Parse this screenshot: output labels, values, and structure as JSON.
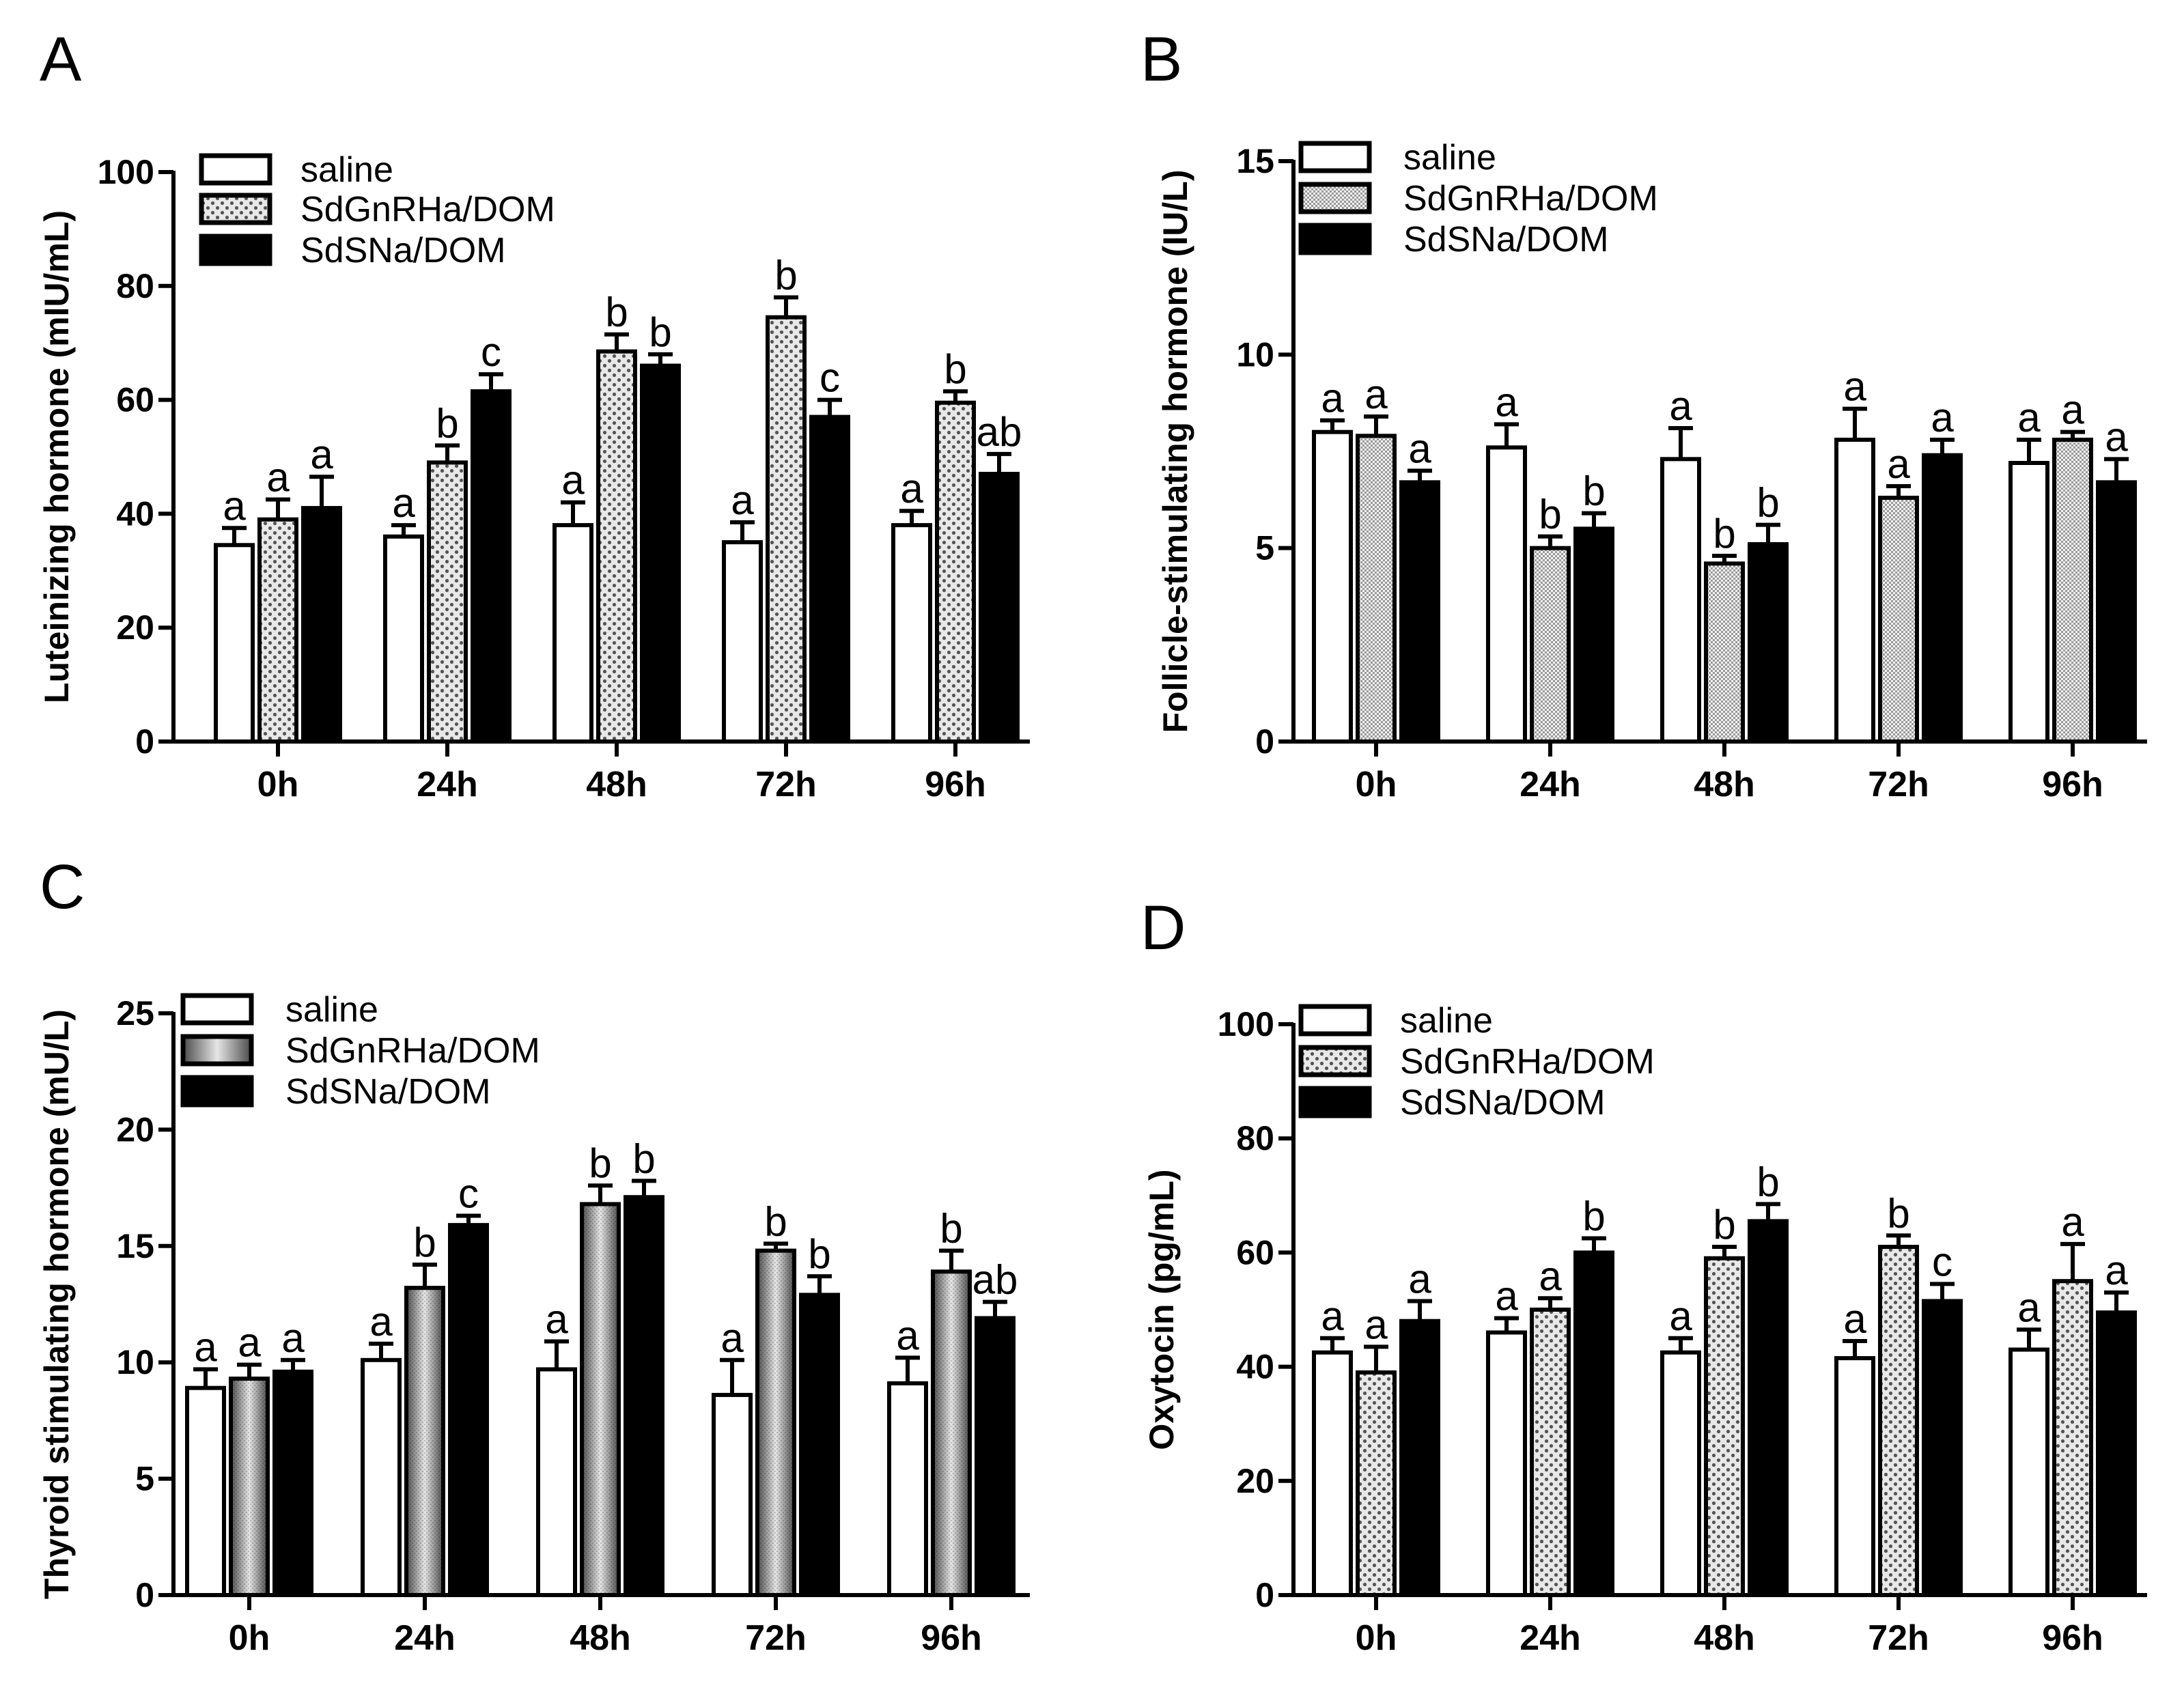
{
  "figure": {
    "colors": {
      "ink": "#000000",
      "paper": "#ffffff",
      "dot_fill": "#b8b8b8",
      "shade_dark": "#555555",
      "shade_light": "#e6e6e6"
    }
  },
  "chart_data": [
    {
      "panel": "A",
      "type": "bar",
      "title": "",
      "xlabel": "",
      "ylabel": "Luteinizing hormone (mIU/mL)",
      "ylim": [
        0,
        100
      ],
      "yticks": [
        "0",
        "20",
        "40",
        "60",
        "80",
        "100"
      ],
      "categories": [
        "0h",
        "24h",
        "48h",
        "72h",
        "96h"
      ],
      "legend": "top-left",
      "series": [
        {
          "name": "saline",
          "pattern": "white",
          "values": [
            34.5,
            36,
            38,
            35,
            38
          ],
          "errors": [
            3,
            2,
            4,
            3.5,
            2.5
          ],
          "labels": [
            "a",
            "a",
            "a",
            "a",
            "a"
          ]
        },
        {
          "name": "SdGnRHa/DOM",
          "pattern": "dots",
          "values": [
            39,
            49,
            68.5,
            74.5,
            59.5
          ],
          "errors": [
            3.5,
            3,
            3,
            3.5,
            2
          ],
          "labels": [
            "a",
            "b",
            "b",
            "b",
            "b"
          ]
        },
        {
          "name": "SdSNa/DOM",
          "pattern": "black",
          "values": [
            41,
            61.5,
            66,
            57,
            47
          ],
          "errors": [
            5.5,
            3,
            2,
            3,
            3.5
          ],
          "labels": [
            "a",
            "c",
            "b",
            "c",
            "ab"
          ]
        }
      ]
    },
    {
      "panel": "B",
      "type": "bar",
      "title": "",
      "xlabel": "",
      "ylabel": "Follicle-stimulating hormone (IU/L)",
      "ylim": [
        0,
        15
      ],
      "yticks": [
        "0",
        "5",
        "10",
        "15"
      ],
      "categories": [
        "0h",
        "24h",
        "48h",
        "72h",
        "96h"
      ],
      "legend": "top-left",
      "series": [
        {
          "name": "saline",
          "pattern": "white",
          "values": [
            8,
            7.6,
            7.3,
            7.8,
            7.2
          ],
          "errors": [
            0.3,
            0.6,
            0.8,
            0.8,
            0.6
          ],
          "labels": [
            "a",
            "a",
            "a",
            "a",
            "a"
          ]
        },
        {
          "name": "SdGnRHa/DOM",
          "pattern": "fine",
          "values": [
            7.9,
            5,
            4.6,
            6.3,
            7.8
          ],
          "errors": [
            0.5,
            0.3,
            0.2,
            0.3,
            0.2
          ],
          "labels": [
            "a",
            "b",
            "b",
            "a",
            "a"
          ]
        },
        {
          "name": "SdSNa/DOM",
          "pattern": "black",
          "values": [
            6.7,
            5.5,
            5.1,
            7.4,
            6.7
          ],
          "errors": [
            0.3,
            0.4,
            0.5,
            0.4,
            0.6
          ],
          "labels": [
            "a",
            "b",
            "b",
            "a",
            "a"
          ]
        }
      ]
    },
    {
      "panel": "C",
      "type": "bar",
      "title": "",
      "xlabel": "",
      "ylabel": "Thyroid stimulating hormone (mU/L)",
      "ylim": [
        0,
        25
      ],
      "yticks": [
        "0",
        "5",
        "10",
        "15",
        "20",
        "25"
      ],
      "categories": [
        "0h",
        "24h",
        "48h",
        "72h",
        "96h"
      ],
      "legend": "top-left",
      "series": [
        {
          "name": "saline",
          "pattern": "white",
          "values": [
            8.9,
            10.1,
            9.7,
            8.6,
            9.1
          ],
          "errors": [
            0.8,
            0.7,
            1.2,
            1.5,
            1.1
          ],
          "labels": [
            "a",
            "a",
            "a",
            "a",
            "a"
          ]
        },
        {
          "name": "SdGnRHa/DOM",
          "pattern": "shaded",
          "values": [
            9.3,
            13.2,
            16.8,
            14.8,
            13.9
          ],
          "errors": [
            0.6,
            1,
            0.8,
            0.3,
            0.9
          ],
          "labels": [
            "a",
            "b",
            "b",
            "b",
            "b"
          ]
        },
        {
          "name": "SdSNa/DOM",
          "pattern": "black",
          "values": [
            9.6,
            15.9,
            17.1,
            12.9,
            11.9
          ],
          "errors": [
            0.5,
            0.4,
            0.7,
            0.8,
            0.7
          ],
          "labels": [
            "a",
            "c",
            "b",
            "b",
            "ab"
          ]
        }
      ]
    },
    {
      "panel": "D",
      "type": "bar",
      "title": "",
      "xlabel": "",
      "ylabel": "Oxytocin (pg/mL)",
      "ylim": [
        0,
        100
      ],
      "yticks": [
        "0",
        "20",
        "40",
        "60",
        "80",
        "100"
      ],
      "categories": [
        "0h",
        "24h",
        "48h",
        "72h",
        "96h"
      ],
      "legend": "top-left",
      "series": [
        {
          "name": "saline",
          "pattern": "white",
          "values": [
            42.5,
            46,
            42.5,
            41.5,
            43
          ],
          "errors": [
            2.5,
            2.5,
            2.5,
            3,
            3.5
          ],
          "labels": [
            "a",
            "a",
            "a",
            "a",
            "a"
          ]
        },
        {
          "name": "SdGnRHa/DOM",
          "pattern": "dots",
          "values": [
            39,
            50,
            59,
            61,
            55
          ],
          "errors": [
            4.5,
            2,
            2,
            2,
            6.5
          ],
          "labels": [
            "a",
            "a",
            "b",
            "b",
            "a"
          ]
        },
        {
          "name": "SdSNa/DOM",
          "pattern": "black",
          "values": [
            48,
            60,
            65.5,
            51.5,
            49.5
          ],
          "errors": [
            3.5,
            2.5,
            3,
            3,
            3.5
          ],
          "labels": [
            "a",
            "b",
            "b",
            "c",
            "a"
          ]
        }
      ]
    }
  ]
}
